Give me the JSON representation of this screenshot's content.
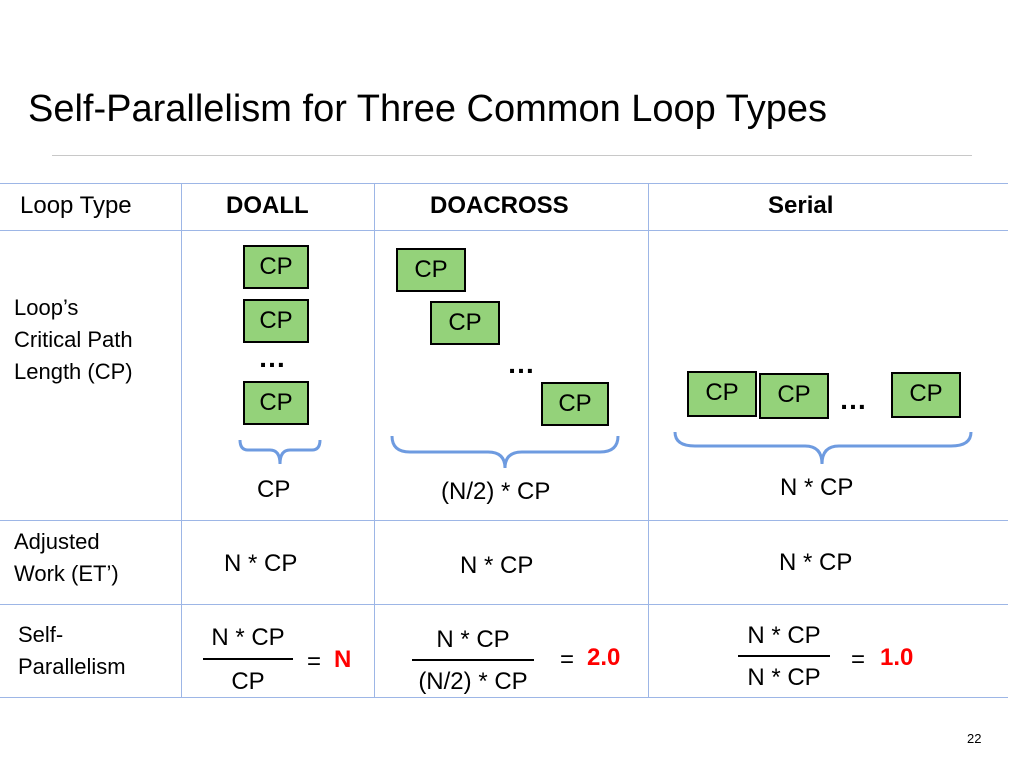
{
  "slide": {
    "title": "Self-Parallelism for Three Common Loop Types",
    "page_number": "22"
  },
  "table": {
    "headers": {
      "loop_type": "Loop Type",
      "doall": "DOALL",
      "doacross": "DOACROSS",
      "serial": "Serial"
    },
    "rows": {
      "critical_path": {
        "line1": "Loop’s",
        "line2": "Critical Path",
        "line3": "Length (CP)"
      },
      "adjusted_work": {
        "line1": "Adjusted",
        "line2": "Work (ET’)"
      },
      "self_parallelism": {
        "line1": "Self-",
        "line2": "Parallelism"
      }
    },
    "block_label": "CP",
    "ellipsis": "…",
    "doall": {
      "cp_total": "CP",
      "adjusted_work": "N * CP",
      "numerator": "N * CP",
      "denominator": "CP",
      "equals": "=",
      "result": "N"
    },
    "doacross": {
      "cp_total": "(N/2) * CP",
      "adjusted_work": "N * CP",
      "numerator": "N * CP",
      "denominator": "(N/2) * CP",
      "equals": "=",
      "result": "2.0"
    },
    "serial": {
      "cp_total": "N * CP",
      "adjusted_work": "N * CP",
      "numerator": "N * CP",
      "denominator": "N * CP",
      "equals": "=",
      "result": "1.0"
    }
  },
  "colors": {
    "cp_block_fill": "#94d27a",
    "grid_line": "#9db6e6",
    "brace": "#6e9be0",
    "result_highlight": "#ff0000"
  }
}
